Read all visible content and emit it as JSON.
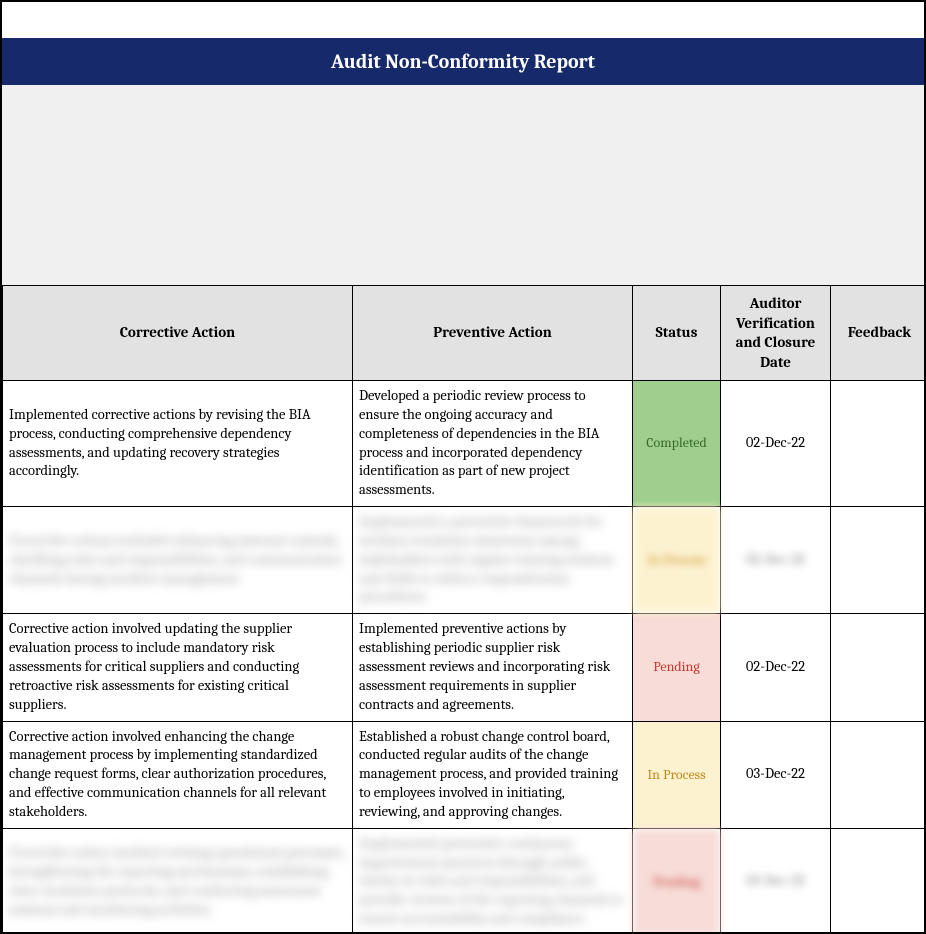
{
  "title": "Audit Non-Conformity Report",
  "colors": {
    "title_bg": "#16296b",
    "title_fg": "#ffffff",
    "header_bg": "#e2e2e2",
    "spacer_bg": "#f0f0f0",
    "border": "#000000",
    "status_completed_bg": "#9fce8e",
    "status_completed_fg": "#3a6b2e",
    "status_inprocess_bg": "#fdf2d0",
    "status_inprocess_fg": "#c08a1f",
    "status_pending_bg": "#f7dcd8",
    "status_pending_fg": "#c63a2f"
  },
  "columns": {
    "corrective": "Corrective Action",
    "preventive": "Preventive Action",
    "status": "Status",
    "date": "Auditor Verification and Closure Date",
    "feedback": "Feedback"
  },
  "rows": [
    {
      "corrective": "Implemented corrective actions by revising the BIA process, conducting comprehensive dependency assessments, and updating recovery strategies accordingly.",
      "preventive": "Developed a periodic review process to ensure the ongoing accuracy and completeness of dependencies in the BIA process and incorporated dependency identification as part of new project assessments.",
      "status": "Completed",
      "status_style": "completed",
      "date": "02-Dec-22",
      "feedback": "",
      "blurred": false
    },
    {
      "corrective": "Corrective actions included enhancing internal controls, clarifying roles and responsibilities, and communication channels during incident management.",
      "preventive": "Implemented a preventive framework for incident escalation awareness among stakeholders with regular training sessions and drills to enforce responsiveness procedures.",
      "status": "In Process",
      "status_style": "inprocess",
      "date": "02-Dec-22",
      "feedback": "",
      "blurred": true
    },
    {
      "corrective": "Corrective action involved updating the supplier evaluation process to include mandatory risk assessments for critical suppliers and conducting retroactive risk assessments for existing critical suppliers.",
      "preventive": "Implemented preventive actions by establishing periodic supplier risk assessment reviews and incorporating risk assessment requirements in supplier contracts and agreements.",
      "status": "Pending",
      "status_style": "pending",
      "date": "02-Dec-22",
      "feedback": "",
      "blurred": false
    },
    {
      "corrective": "Corrective action involved enhancing the change management process by implementing standardized change request forms, clear authorization procedures, and effective communication channels for all relevant stakeholders.",
      "preventive": "Established a robust change control board, conducted regular audits of the change management process, and provided training to employees involved in initiating, reviewing, and approving changes.",
      "status": "In Process",
      "status_style": "inprocess",
      "date": "03-Dec-22",
      "feedback": "",
      "blurred": false
    },
    {
      "corrective": "Corrective action involved revising operational processes, strengthening the reporting mechanisms, establishing clear escalation protocols, and conducting awareness sessions and monitoring activities.",
      "preventive": "Implemented preventive continuous improvement practices through audits, clarity on roles and responsibilities, and periodic reviews of the reporting channels to ensure accountability and compliance.",
      "status": "Pending",
      "status_style": "pending",
      "date": "03-Dec-22",
      "feedback": "",
      "blurred": true
    }
  ]
}
